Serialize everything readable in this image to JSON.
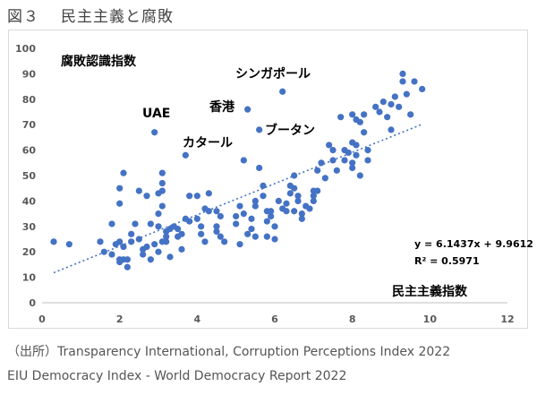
{
  "figure": {
    "number": "図３",
    "title": "民主主義と腐敗"
  },
  "source": {
    "line1": "（出所）Transparency International, Corruption Perceptions Index 2022",
    "line2": "EIU Democracy Index - World Democracy Report 2022"
  },
  "chart_data": {
    "type": "scatter",
    "title": "",
    "xlabel": "民主主義指数",
    "ylabel": "腐敗認識指数",
    "xlim": [
      0,
      12
    ],
    "ylim": [
      0,
      100
    ],
    "xticks": [
      0,
      2,
      4,
      6,
      8,
      10,
      12
    ],
    "yticks": [
      0,
      10,
      20,
      30,
      40,
      50,
      60,
      70,
      80,
      90,
      100
    ],
    "grid": false,
    "colors": {
      "point": "#4472c4",
      "trendline": "#4472c4"
    },
    "trendline": {
      "type": "linear",
      "slope": 6.1437,
      "intercept": 9.9612,
      "r2": 0.5971,
      "equation_label": "y = 6.1437x + 9.9612",
      "r2_label": "R² = 0.5971",
      "x_range": [
        0.3,
        9.8
      ]
    },
    "annotations": [
      {
        "text": "シンガポール",
        "x": 6.2,
        "y": 83
      },
      {
        "text": "香港",
        "x": 5.3,
        "y": 76
      },
      {
        "text": "ブータン",
        "x": 5.6,
        "y": 68
      },
      {
        "text": "UAE",
        "x": 2.9,
        "y": 67
      },
      {
        "text": "カタール",
        "x": 3.7,
        "y": 58
      }
    ],
    "points": [
      [
        0.3,
        24
      ],
      [
        0.7,
        23
      ],
      [
        1.5,
        24
      ],
      [
        1.6,
        20
      ],
      [
        1.8,
        19
      ],
      [
        1.8,
        31
      ],
      [
        1.9,
        23
      ],
      [
        2.0,
        17
      ],
      [
        2.0,
        16
      ],
      [
        2.0,
        24
      ],
      [
        2.0,
        45
      ],
      [
        2.0,
        39
      ],
      [
        2.1,
        51
      ],
      [
        2.1,
        22
      ],
      [
        2.1,
        17
      ],
      [
        2.2,
        17
      ],
      [
        2.2,
        14
      ],
      [
        2.3,
        27
      ],
      [
        2.3,
        24
      ],
      [
        2.4,
        31
      ],
      [
        2.5,
        25
      ],
      [
        2.5,
        44
      ],
      [
        2.6,
        21
      ],
      [
        2.6,
        19
      ],
      [
        2.7,
        22
      ],
      [
        2.7,
        42
      ],
      [
        2.8,
        31
      ],
      [
        2.8,
        17
      ],
      [
        2.9,
        23
      ],
      [
        2.9,
        67
      ],
      [
        3.0,
        30
      ],
      [
        3.0,
        43
      ],
      [
        3.0,
        35
      ],
      [
        3.0,
        20
      ],
      [
        3.1,
        51
      ],
      [
        3.1,
        47
      ],
      [
        3.1,
        38
      ],
      [
        3.1,
        24
      ],
      [
        3.1,
        44
      ],
      [
        3.2,
        28
      ],
      [
        3.2,
        26
      ],
      [
        3.2,
        24
      ],
      [
        3.3,
        29
      ],
      [
        3.3,
        18
      ],
      [
        3.4,
        30
      ],
      [
        3.5,
        29
      ],
      [
        3.5,
        26
      ],
      [
        3.6,
        27
      ],
      [
        3.6,
        21
      ],
      [
        3.7,
        58
      ],
      [
        3.7,
        33
      ],
      [
        3.8,
        32
      ],
      [
        3.8,
        42
      ],
      [
        4.0,
        33
      ],
      [
        4.0,
        42
      ],
      [
        4.1,
        30
      ],
      [
        4.1,
        27
      ],
      [
        4.2,
        37
      ],
      [
        4.2,
        24
      ],
      [
        4.3,
        43
      ],
      [
        4.3,
        36
      ],
      [
        4.5,
        36
      ],
      [
        4.5,
        30
      ],
      [
        4.5,
        28
      ],
      [
        4.6,
        26
      ],
      [
        4.6,
        34
      ],
      [
        4.7,
        24
      ],
      [
        5.0,
        34
      ],
      [
        5.0,
        31
      ],
      [
        5.1,
        38
      ],
      [
        5.1,
        23
      ],
      [
        5.2,
        35
      ],
      [
        5.2,
        56
      ],
      [
        5.3,
        76
      ],
      [
        5.3,
        27
      ],
      [
        5.4,
        29
      ],
      [
        5.4,
        33
      ],
      [
        5.5,
        26
      ],
      [
        5.5,
        38
      ],
      [
        5.5,
        40
      ],
      [
        5.6,
        68
      ],
      [
        5.6,
        53
      ],
      [
        5.7,
        46
      ],
      [
        5.7,
        42
      ],
      [
        5.8,
        36
      ],
      [
        5.8,
        32
      ],
      [
        5.8,
        26
      ],
      [
        5.9,
        34
      ],
      [
        5.9,
        36
      ],
      [
        6.0,
        30
      ],
      [
        6.0,
        25
      ],
      [
        6.1,
        40
      ],
      [
        6.2,
        83
      ],
      [
        6.2,
        37
      ],
      [
        6.3,
        36
      ],
      [
        6.3,
        39
      ],
      [
        6.4,
        46
      ],
      [
        6.4,
        43
      ],
      [
        6.5,
        50
      ],
      [
        6.5,
        45
      ],
      [
        6.5,
        36
      ],
      [
        6.6,
        40
      ],
      [
        6.6,
        42
      ],
      [
        6.7,
        35
      ],
      [
        6.7,
        33
      ],
      [
        6.8,
        38
      ],
      [
        6.9,
        37
      ],
      [
        7.0,
        44
      ],
      [
        7.0,
        42
      ],
      [
        7.0,
        40
      ],
      [
        7.1,
        52
      ],
      [
        7.1,
        44
      ],
      [
        7.2,
        55
      ],
      [
        7.3,
        49
      ],
      [
        7.4,
        62
      ],
      [
        7.5,
        60
      ],
      [
        7.5,
        56
      ],
      [
        7.6,
        52
      ],
      [
        7.7,
        73
      ],
      [
        7.8,
        60
      ],
      [
        7.8,
        56
      ],
      [
        7.9,
        59
      ],
      [
        8.0,
        74
      ],
      [
        8.0,
        63
      ],
      [
        8.0,
        55
      ],
      [
        8.0,
        53
      ],
      [
        8.1,
        62
      ],
      [
        8.1,
        58
      ],
      [
        8.1,
        72
      ],
      [
        8.2,
        71
      ],
      [
        8.2,
        50
      ],
      [
        8.3,
        74
      ],
      [
        8.3,
        67
      ],
      [
        8.4,
        60
      ],
      [
        8.4,
        56
      ],
      [
        8.6,
        77
      ],
      [
        8.7,
        75
      ],
      [
        8.8,
        79
      ],
      [
        8.9,
        73
      ],
      [
        9.0,
        78
      ],
      [
        9.0,
        68
      ],
      [
        9.1,
        81
      ],
      [
        9.2,
        77
      ],
      [
        9.3,
        90
      ],
      [
        9.3,
        87
      ],
      [
        9.4,
        82
      ],
      [
        9.5,
        74
      ],
      [
        9.6,
        87
      ],
      [
        9.8,
        84
      ]
    ]
  }
}
